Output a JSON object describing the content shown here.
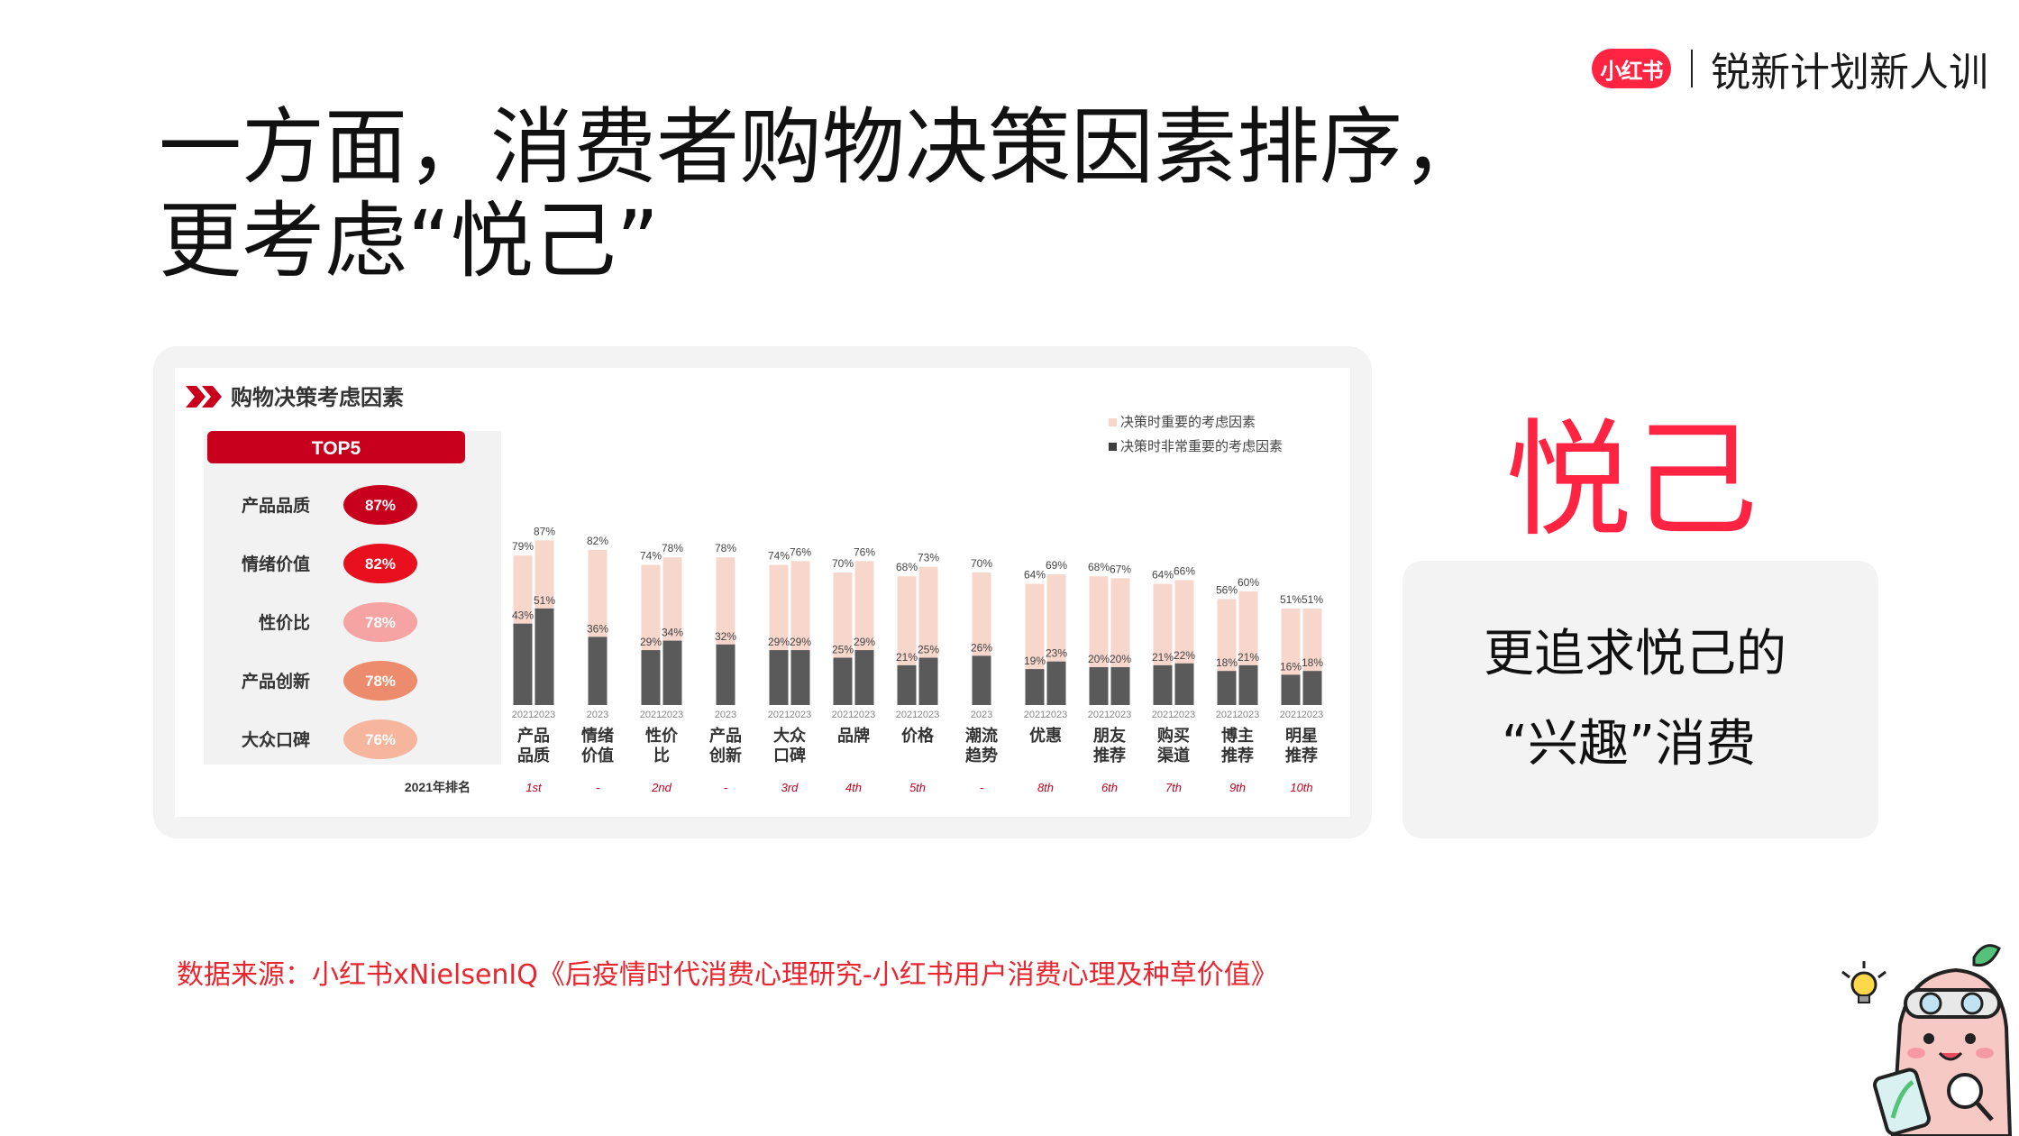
{
  "brand": {
    "logo_text": "小红书",
    "text": "锐新计划新人训"
  },
  "title": {
    "line1": "一方面，消费者购物决策因素排序，",
    "line2": "更考虑“悦己”"
  },
  "highlight": "悦己",
  "info": {
    "line1": "更追求悦己的",
    "line2": "“兴趣”消费"
  },
  "source": "数据来源：小红书xNielsenIQ《后疫情时代消费心理研究-小红书用户消费心理及种草价值》",
  "colors": {
    "accent": "#ff2442",
    "light_series": "#f7d6cc",
    "dark_series": "#5a5a5a",
    "panel_red": "#c8001e"
  },
  "chart_data": {
    "type": "bar",
    "title": "购物决策考虑因素",
    "legend": [
      "决策时重要的考虑因素",
      "决策时非常重要的考虑因素"
    ],
    "legend_position": "top-right",
    "ylim": [
      0,
      100
    ],
    "grid": false,
    "top5": {
      "header": "TOP5",
      "items": [
        {
          "label": "产品品质",
          "value": "87%",
          "color": "#c8001e"
        },
        {
          "label": "情绪价值",
          "value": "82%",
          "color": "#e8101e"
        },
        {
          "label": "性价比",
          "value": "78%",
          "color": "#f5a3a3"
        },
        {
          "label": "产品创新",
          "value": "78%",
          "color": "#ec8c6c"
        },
        {
          "label": "大众口碑",
          "value": "76%",
          "color": "#f6b69e"
        }
      ]
    },
    "rank_label": "2021年排名",
    "categories": [
      {
        "name": [
          "产品",
          "品质"
        ],
        "rank": "1st",
        "bars": [
          {
            "year": "2021",
            "important": 79,
            "very": 43
          },
          {
            "year": "2023",
            "important": 87,
            "very": 51
          }
        ]
      },
      {
        "name": [
          "情绪",
          "价值"
        ],
        "rank": "-",
        "bars": [
          {
            "year": "2023",
            "important": 82,
            "very": 36
          }
        ]
      },
      {
        "name": [
          "性价",
          "比"
        ],
        "rank": "2nd",
        "bars": [
          {
            "year": "2021",
            "important": 74,
            "very": 29
          },
          {
            "year": "2023",
            "important": 78,
            "very": 34
          }
        ]
      },
      {
        "name": [
          "产品",
          "创新"
        ],
        "rank": "-",
        "bars": [
          {
            "year": "2023",
            "important": 78,
            "very": 32
          }
        ]
      },
      {
        "name": [
          "大众",
          "口碑"
        ],
        "rank": "3rd",
        "bars": [
          {
            "year": "2021",
            "important": 74,
            "very": 29
          },
          {
            "year": "2023",
            "important": 76,
            "very": 29
          }
        ]
      },
      {
        "name": [
          "品牌"
        ],
        "rank": "4th",
        "bars": [
          {
            "year": "2021",
            "important": 70,
            "very": 25
          },
          {
            "year": "2023",
            "important": 76,
            "very": 29
          }
        ]
      },
      {
        "name": [
          "价格"
        ],
        "rank": "5th",
        "bars": [
          {
            "year": "2021",
            "important": 68,
            "very": 21
          },
          {
            "year": "2023",
            "important": 73,
            "very": 25
          }
        ]
      },
      {
        "name": [
          "潮流",
          "趋势"
        ],
        "rank": "-",
        "bars": [
          {
            "year": "2023",
            "important": 70,
            "very": 26
          }
        ]
      },
      {
        "name": [
          "优惠"
        ],
        "rank": "8th",
        "bars": [
          {
            "year": "2021",
            "important": 64,
            "very": 19
          },
          {
            "year": "2023",
            "important": 69,
            "very": 23
          }
        ]
      },
      {
        "name": [
          "朋友",
          "推荐"
        ],
        "rank": "6th",
        "bars": [
          {
            "year": "2021",
            "important": 68,
            "very": 20
          },
          {
            "year": "2023",
            "important": 67,
            "very": 20
          }
        ]
      },
      {
        "name": [
          "购买",
          "渠道"
        ],
        "rank": "7th",
        "bars": [
          {
            "year": "2021",
            "important": 64,
            "very": 21
          },
          {
            "year": "2023",
            "important": 66,
            "very": 22
          }
        ]
      },
      {
        "name": [
          "博主",
          "推荐"
        ],
        "rank": "9th",
        "bars": [
          {
            "year": "2021",
            "important": 56,
            "very": 18
          },
          {
            "year": "2023",
            "important": 60,
            "very": 21
          }
        ]
      },
      {
        "name": [
          "明星",
          "推荐"
        ],
        "rank": "10th",
        "bars": [
          {
            "year": "2021",
            "important": 51,
            "very": 16
          },
          {
            "year": "2023",
            "important": 51,
            "very": 18
          }
        ]
      }
    ]
  }
}
